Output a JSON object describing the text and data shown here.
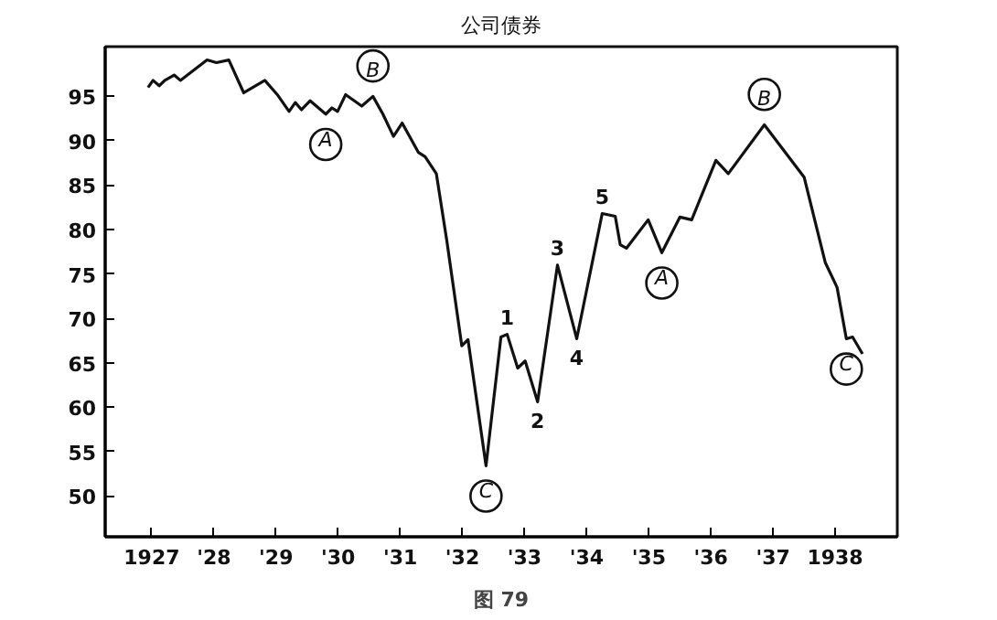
{
  "chart_data": {
    "type": "line",
    "title": "公司债券",
    "x": [
      1926.94,
      1927.02,
      1927.12,
      1927.21,
      1927.36,
      1927.46,
      1927.89,
      1928.04,
      1928.24,
      1928.48,
      1928.82,
      1929.02,
      1929.21,
      1929.31,
      1929.41,
      1929.55,
      1929.8,
      1929.9,
      1929.99,
      1930.12,
      1930.38,
      1930.56,
      1930.72,
      1930.89,
      1931.03,
      1931.29,
      1931.4,
      1931.58,
      1931.75,
      1931.99,
      1932.09,
      1932.38,
      1932.62,
      1932.72,
      1932.89,
      1933.01,
      1933.21,
      1933.53,
      1933.84,
      1934.25,
      1934.46,
      1934.54,
      1934.64,
      1934.99,
      1935.21,
      1935.5,
      1935.69,
      1936.08,
      1936.28,
      1936.86,
      1937.5,
      1937.84,
      1938.03,
      1938.18,
      1938.28,
      1938.44
    ],
    "values": [
      96.0,
      96.8,
      96.2,
      96.8,
      97.4,
      96.8,
      99.1,
      98.8,
      99.1,
      95.4,
      96.8,
      95.2,
      93.3,
      94.3,
      93.5,
      94.5,
      93.0,
      93.7,
      93.3,
      95.2,
      93.9,
      95.0,
      93.0,
      90.5,
      92.0,
      88.7,
      88.2,
      86.3,
      78.7,
      66.9,
      67.6,
      53.4,
      67.9,
      68.2,
      64.4,
      65.2,
      60.6,
      76.0,
      67.7,
      81.8,
      81.5,
      78.3,
      77.9,
      81.1,
      77.4,
      81.4,
      81.1,
      87.8,
      86.3,
      91.8,
      85.9,
      76.3,
      73.5,
      67.7,
      67.9,
      66.0
    ],
    "color": "#111111",
    "marker": "none",
    "line_style": "solid",
    "grid": false,
    "xlim": [
      1926.25,
      1939.0
    ],
    "ylim": [
      45.4,
      100.6
    ],
    "xticks": [
      {
        "value": 1927,
        "label": "1927"
      },
      {
        "value": 1928,
        "label": "'28"
      },
      {
        "value": 1929,
        "label": "'29"
      },
      {
        "value": 1930,
        "label": "'30"
      },
      {
        "value": 1931,
        "label": "'31"
      },
      {
        "value": 1932,
        "label": "'32"
      },
      {
        "value": 1933,
        "label": "'33"
      },
      {
        "value": 1934,
        "label": "'34"
      },
      {
        "value": 1935,
        "label": "'35"
      },
      {
        "value": 1936,
        "label": "'36"
      },
      {
        "value": 1937,
        "label": "'37"
      },
      {
        "value": 1938,
        "label": "1938"
      }
    ],
    "yticks": [
      50,
      55,
      60,
      65,
      70,
      75,
      80,
      85,
      90,
      95
    ],
    "annotations": [
      {
        "text": "A",
        "x": 1929.8,
        "y": 93.0
      },
      {
        "text": "B",
        "x": 1930.56,
        "y": 95.0
      },
      {
        "text": "C",
        "x": 1932.38,
        "y": 53.4
      },
      {
        "text": "1",
        "x": 1932.72,
        "y": 68.2
      },
      {
        "text": "2",
        "x": 1933.21,
        "y": 60.6
      },
      {
        "text": "3",
        "x": 1933.53,
        "y": 76.0
      },
      {
        "text": "4",
        "x": 1933.84,
        "y": 67.7
      },
      {
        "text": "5",
        "x": 1934.25,
        "y": 81.8
      },
      {
        "text": "A",
        "x": 1935.21,
        "y": 77.4
      },
      {
        "text": "B",
        "x": 1936.86,
        "y": 91.8
      },
      {
        "text": "C",
        "x": 1938.18,
        "y": 67.7
      },
      "图 79"
    ]
  }
}
